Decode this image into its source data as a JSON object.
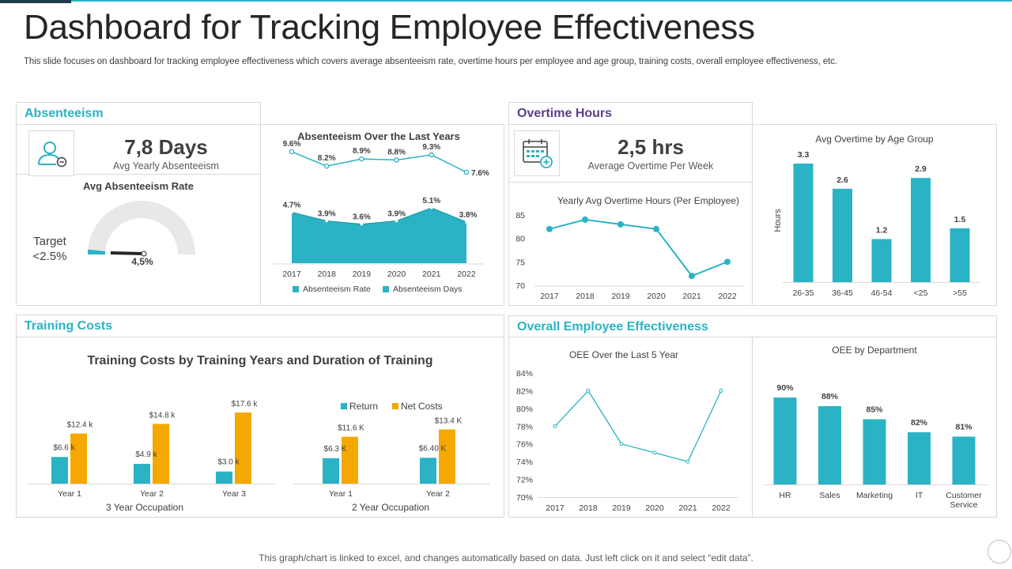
{
  "page": {
    "title": "Dashboard for Tracking Employee Effectiveness",
    "subtitle": "This slide focuses on dashboard for tracking employee effectiveness which covers average absenteeism rate, overtime hours per employee and age group, training costs, overall employee effectiveness, etc.",
    "footer": "This graph/chart is linked to excel, and changes automatically based on data. Just left click on it and select “edit data”."
  },
  "colors": {
    "teal": "#2ab3c4",
    "orange": "#f5a800",
    "purple": "#5b3f8a",
    "dark": "#404040"
  },
  "absenteeism": {
    "section_title": "Absenteeism",
    "icon": "user-remove-icon",
    "kpi_value": "7,8 Days",
    "kpi_label": "Avg Yearly Absenteeism",
    "gauge_title": "Avg Absenteeism Rate",
    "target_label": "Target",
    "target_value": "<2.5%",
    "gauge_value": "4,5%",
    "gauge_fraction": 0.045
  },
  "overtime": {
    "section_title": "Overtime Hours",
    "icon": "calendar-add-icon",
    "kpi_value": "2,5 hrs",
    "kpi_label": "Average  Overtime  Per Week"
  },
  "training": {
    "section_title": "Training Costs"
  },
  "oee": {
    "section_title": "Overall Employee Effectiveness"
  },
  "chart_data": [
    {
      "id": "absenteeism_years",
      "type": "line+area",
      "title": "Absenteeism Over the Last Years",
      "categories": [
        "2017",
        "2018",
        "2019",
        "2020",
        "2021",
        "2022"
      ],
      "series": [
        {
          "name": "Absenteeism Days",
          "type": "line",
          "values": [
            9.6,
            8.2,
            8.9,
            8.8,
            9.3,
            7.6
          ],
          "labels": [
            "9.6%",
            "8.2%",
            "8.9%",
            "8.8%",
            "9.3%",
            "7.6%"
          ]
        },
        {
          "name": "Absenteeism Rate",
          "type": "area",
          "values": [
            4.7,
            3.9,
            3.6,
            3.9,
            5.1,
            3.8
          ],
          "labels": [
            "4.7%",
            "3.9%",
            "3.6%",
            "3.9%",
            "5.1%",
            "3.8%"
          ]
        }
      ],
      "legend": [
        "Absenteeism Rate",
        "Absenteeism Days"
      ]
    },
    {
      "id": "overtime_yearly",
      "type": "line",
      "title": "Yearly Avg Overtime Hours (Per Employee)",
      "categories": [
        "2017",
        "2018",
        "2019",
        "2020",
        "2021",
        "2022"
      ],
      "values": [
        82,
        84,
        83,
        82,
        72,
        75
      ],
      "ylim": [
        70,
        85
      ],
      "yticks": [
        "70",
        "75",
        "80",
        "85"
      ]
    },
    {
      "id": "overtime_age",
      "type": "bar",
      "title": "Avg Overtime  by Age Group",
      "ylabel": "Hours",
      "categories": [
        "26-35",
        "36-45",
        "46-54",
        "<25",
        ">55"
      ],
      "values": [
        3.3,
        2.6,
        1.2,
        2.9,
        1.5
      ],
      "labels": [
        "3.3",
        "2.6",
        "1.2",
        "2.9",
        "1.5"
      ],
      "ylim": [
        0,
        3.5
      ]
    },
    {
      "id": "training_3yr",
      "type": "bar",
      "title": "Training Costs by Training Years and Duration of Training",
      "group_title": "3 Year Occupation",
      "categories": [
        "Year 1",
        "Year 2",
        "Year 3"
      ],
      "series": [
        {
          "name": "Return",
          "values": [
            6.6,
            4.9,
            3.0
          ],
          "labels": [
            "$6.6 k",
            "$4.9 k",
            "$3.0 k"
          ]
        },
        {
          "name": "Net Costs",
          "values": [
            12.4,
            14.8,
            17.6
          ],
          "labels": [
            "$12.4 k",
            "$14.8 k",
            "$17.6 k"
          ]
        }
      ],
      "ylim": [
        0,
        18
      ]
    },
    {
      "id": "training_2yr",
      "type": "bar",
      "group_title": "2 Year Occupation",
      "categories": [
        "Year 1",
        "Year  2"
      ],
      "series": [
        {
          "name": "Return",
          "values": [
            6.3,
            6.4
          ],
          "labels": [
            "$6.3 K",
            "$6.40 K"
          ]
        },
        {
          "name": "Net Costs",
          "values": [
            11.6,
            13.4
          ],
          "labels": [
            "$11.6 K",
            "$13.4 K"
          ]
        }
      ],
      "legend": [
        "Return",
        "Net Costs"
      ],
      "ylim": [
        0,
        18
      ]
    },
    {
      "id": "oee_years",
      "type": "line",
      "title": "OEE Over the Last 5 Year",
      "categories": [
        "2017",
        "2018",
        "2019",
        "2020",
        "2021",
        "2022"
      ],
      "values": [
        78,
        82,
        76,
        75,
        74,
        82
      ],
      "ylim": [
        70,
        84
      ],
      "yticks": [
        "70%",
        "72%",
        "74%",
        "76%",
        "78%",
        "80%",
        "82%",
        "84%"
      ]
    },
    {
      "id": "oee_department",
      "type": "bar",
      "title": "OEE by Department",
      "categories": [
        "HR",
        "Sales",
        "Marketing",
        "IT",
        "Customer Service"
      ],
      "values": [
        90,
        88,
        85,
        82,
        81
      ],
      "labels": [
        "90%",
        "88%",
        "85%",
        "82%",
        "81%"
      ],
      "ylim": [
        70,
        90
      ]
    }
  ]
}
